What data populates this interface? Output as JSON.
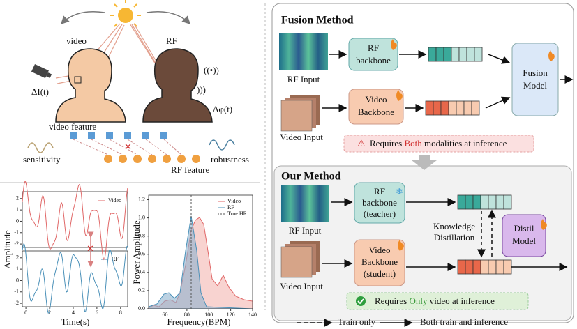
{
  "illustration": {
    "video": "video",
    "rf": "RF",
    "delta_i": "ΔI(t)",
    "delta_phi": "Δφ(t)",
    "video_feature": "video feature",
    "sensitivity": "sensitivity",
    "robustness": "robustness",
    "rf_feature": "RF feature"
  },
  "time_plot": {
    "ylabel": "Amplitude",
    "xlabel": "Time(s)",
    "xlim": [
      -0.3,
      8.6
    ],
    "ylim": [
      -2.3,
      2.6
    ],
    "top_yticks": [
      2,
      1,
      0,
      -1,
      -2
    ],
    "bottom_yticks": [
      2,
      1,
      0,
      -1,
      -2
    ],
    "xticks": [
      0,
      2,
      4,
      6,
      8
    ],
    "top_legend": "Video",
    "bottom_legend": "RF"
  },
  "freq_plot": {
    "ylabel": "Power Amplitude",
    "xlabel": "Frequency(BPM)",
    "xlim": [
      45,
      140
    ],
    "ylim": [
      0,
      1.25
    ],
    "yticks": [
      {
        "value": 0,
        "label": "0.0"
      },
      {
        "value": 0.2,
        "label": "0.2"
      },
      {
        "value": 0.4,
        "label": "0.4"
      },
      {
        "value": 0.6,
        "label": "0.6"
      },
      {
        "value": 0.8,
        "label": "0.8"
      },
      {
        "value": 1.0,
        "label": "1.0"
      },
      {
        "value": 1.2,
        "label": "1.2"
      }
    ],
    "xticks": [
      60,
      80,
      100,
      120,
      140
    ],
    "legend": [
      "Video",
      "RF",
      "True HR"
    ]
  },
  "fusion": {
    "title": "Fusion Method",
    "rf_input": "RF Input",
    "video_input": "Video Input",
    "rf_backbone": [
      "RF",
      "backbone"
    ],
    "video_backbone": [
      "Video",
      "Backbone"
    ],
    "fusion_model": [
      "Fusion",
      "Model"
    ],
    "note": [
      "Requires",
      "Both",
      "modalities at inference"
    ]
  },
  "ours": {
    "title": "Our Method",
    "rf_input": "RF Input",
    "video_input": "Video Input",
    "rf_backbone": [
      "RF",
      "backbone",
      "(teacher)"
    ],
    "video_backbone": [
      "Video",
      "Backbone",
      "(student)"
    ],
    "distillation": [
      "Knowledge",
      "Distillation"
    ],
    "distil_model": [
      "Distil",
      "Model"
    ],
    "note": [
      "Requires",
      "Only",
      "video at inference"
    ]
  },
  "legend": {
    "train_only": "Train only",
    "both": "Both train and inference"
  }
}
